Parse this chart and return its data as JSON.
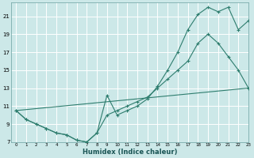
{
  "xlabel": "Humidex (Indice chaleur)",
  "bg_color": "#cce8e8",
  "line_color": "#2e7d6e",
  "grid_color": "#b8d8d8",
  "xmin": -0.5,
  "xmax": 23,
  "ymin": 7,
  "ymax": 22.5,
  "yticks": [
    7,
    9,
    11,
    13,
    15,
    17,
    19,
    21
  ],
  "xticks": [
    0,
    1,
    2,
    3,
    4,
    5,
    6,
    7,
    8,
    9,
    10,
    11,
    12,
    13,
    14,
    15,
    16,
    17,
    18,
    19,
    20,
    21,
    22,
    23
  ],
  "line1_x": [
    0,
    1,
    2,
    3,
    4,
    5,
    6,
    7,
    8,
    9,
    10,
    11,
    12,
    13,
    14,
    15,
    16,
    17,
    18,
    19,
    20,
    21,
    22,
    23
  ],
  "line1_y": [
    10.5,
    9.5,
    9.0,
    8.5,
    8.0,
    7.8,
    7.2,
    7.0,
    8.0,
    12.2,
    10.0,
    10.5,
    11.0,
    11.8,
    13.2,
    15.0,
    17.0,
    19.5,
    21.2,
    22.0,
    21.5,
    22.0,
    19.5,
    20.5
  ],
  "line2_x": [
    0,
    1,
    2,
    3,
    4,
    5,
    6,
    7,
    8,
    9,
    10,
    11,
    12,
    13,
    14,
    15,
    16,
    17,
    18,
    19,
    20,
    21,
    22,
    23
  ],
  "line2_y": [
    10.5,
    9.5,
    9.0,
    8.5,
    8.0,
    7.8,
    7.2,
    7.0,
    8.0,
    10.0,
    10.5,
    11.0,
    11.5,
    12.0,
    13.0,
    14.0,
    15.0,
    16.0,
    18.0,
    19.0,
    18.0,
    16.5,
    15.0,
    13.0
  ],
  "line3_x": [
    0,
    23
  ],
  "line3_y": [
    10.5,
    13.0
  ]
}
